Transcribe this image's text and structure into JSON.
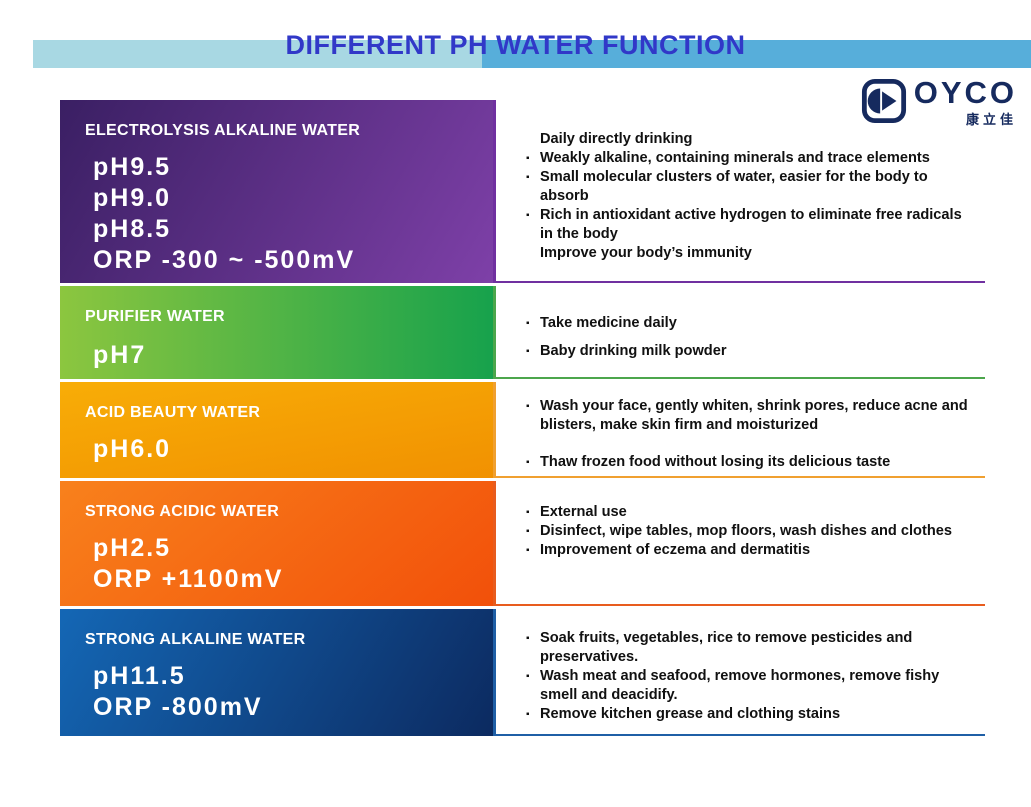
{
  "header": {
    "title": "DIFFERENT PH WATER FUNCTION",
    "title_color": "#3138c8",
    "banner_left_color": "#a8d8e3",
    "banner_right_color": "#57aeda"
  },
  "logo": {
    "brand": "OYCO",
    "chinese_name": "康立佳",
    "color": "#162a5e"
  },
  "bullet_glyph": "▪",
  "sections": [
    {
      "id": "electrolysis-alkaline-water",
      "title": "ELECTROLYSIS ALKALINE WATER",
      "values": [
        "pH9.5",
        "pH9.0",
        "pH8.5",
        "ORP -300 ~ -500mV"
      ],
      "gradient": {
        "angle": "120deg",
        "from": "#3a1f63",
        "to": "#7e40a8"
      },
      "line_color": "#7030a0",
      "bullets": [
        {
          "text": "Daily directly drinking",
          "marker": false
        },
        {
          "text": "Weakly alkaline, containing minerals and trace elements",
          "marker": true
        },
        {
          "text": "Small molecular clusters of water, easier for the body to absorb",
          "marker": true
        },
        {
          "text": "Rich in antioxidant active hydrogen to eliminate free radicals in the body",
          "marker": true
        },
        {
          "text": "Improve your body’s immunity",
          "marker": false
        }
      ]
    },
    {
      "id": "purifier-water",
      "title": "PURIFIER WATER",
      "values": [
        "pH7"
      ],
      "gradient": {
        "angle": "90deg",
        "from": "#8cc63f",
        "to": "#17a24c"
      },
      "line_color": "#4ca64c",
      "bullets": [
        {
          "text": "Take medicine daily",
          "marker": true
        },
        {
          "text": "Baby drinking milk powder",
          "marker": true
        }
      ]
    },
    {
      "id": "acid-beauty-water",
      "title": "ACID BEAUTY WATER",
      "values": [
        "pH6.0"
      ],
      "gradient": {
        "angle": "170deg",
        "from": "#f8ad07",
        "to": "#f19101"
      },
      "line_color": "#f0a030",
      "bullets": [
        {
          "text": "Wash your face, gently whiten, shrink pores, reduce acne and blisters, make skin firm and moisturized",
          "marker": true
        },
        {
          "text": "Thaw frozen food without losing its delicious taste",
          "marker": true
        }
      ]
    },
    {
      "id": "strong-acidic-water",
      "title": "STRONG ACIDIC WATER",
      "values": [
        "pH2.5",
        "ORP +1100mV"
      ],
      "gradient": {
        "angle": "140deg",
        "from": "#f8811c",
        "to": "#f2500a"
      },
      "line_color": "#e85c1e",
      "bullets": [
        {
          "text": "External use",
          "marker": true
        },
        {
          "text": "Disinfect, wipe tables, mop floors, wash dishes and clothes",
          "marker": true
        },
        {
          "text": "Improvement of eczema and dermatitis",
          "marker": true
        }
      ]
    },
    {
      "id": "strong-alkaline-water",
      "title": "STRONG ALKALINE WATER",
      "values": [
        "pH11.5",
        "ORP -800mV"
      ],
      "gradient": {
        "angle": "120deg",
        "from": "#1467b5",
        "to": "#0c2a60"
      },
      "line_color": "#1f5fa6",
      "bullets": [
        {
          "text": "Soak fruits, vegetables, rice to remove pesticides and preservatives.",
          "marker": true
        },
        {
          "text": "Wash meat and seafood, remove hormones, remove fishy smell and deacidify.",
          "marker": true
        },
        {
          "text": "Remove kitchen grease and clothing stains",
          "marker": true
        }
      ]
    }
  ]
}
